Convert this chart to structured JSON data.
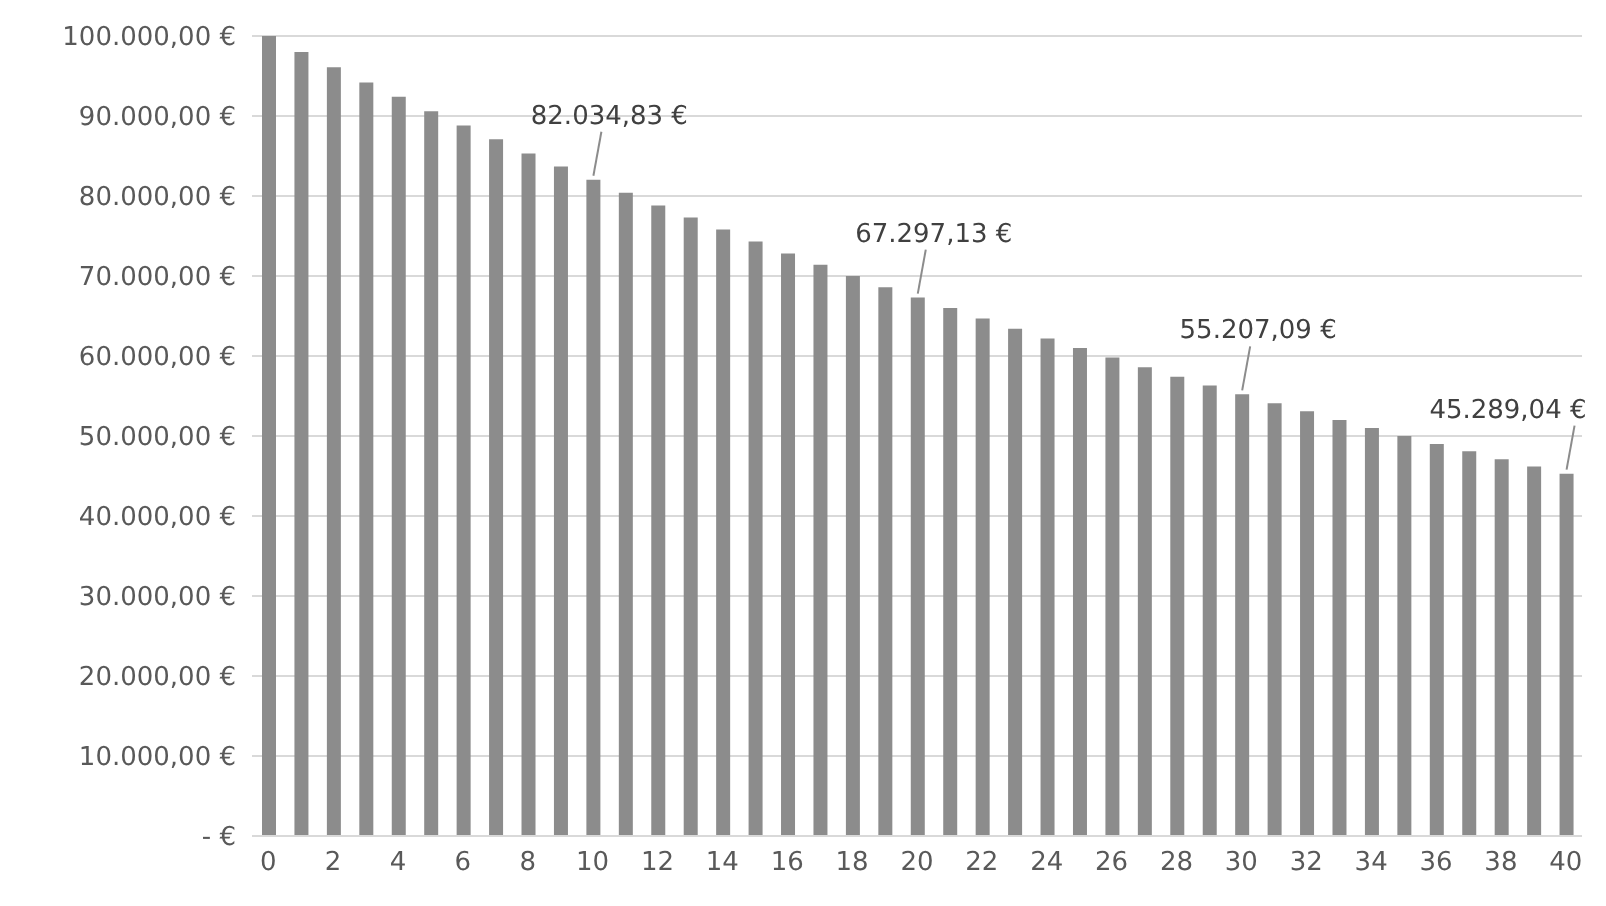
{
  "chart_data": {
    "type": "bar",
    "x": [
      0,
      1,
      2,
      3,
      4,
      5,
      6,
      7,
      8,
      9,
      10,
      11,
      12,
      13,
      14,
      15,
      16,
      17,
      18,
      19,
      20,
      21,
      22,
      23,
      24,
      25,
      26,
      27,
      28,
      29,
      30,
      31,
      32,
      33,
      34,
      35,
      36,
      37,
      38,
      39,
      40
    ],
    "xlim": [
      -0.5,
      40.5
    ],
    "xticks": [
      0,
      2,
      4,
      6,
      8,
      10,
      12,
      14,
      16,
      18,
      20,
      22,
      24,
      26,
      28,
      30,
      32,
      34,
      36,
      38,
      40
    ],
    "values": [
      100000,
      98000,
      96100,
      94200,
      92400,
      90600,
      88800,
      87100,
      85300,
      83700,
      82034.83,
      80400,
      78800,
      77300,
      75800,
      74300,
      72800,
      71400,
      70000,
      68600,
      67297.13,
      66000,
      64700,
      63400,
      62200,
      61000,
      59800,
      58600,
      57400,
      56300,
      55207.09,
      54100,
      53100,
      52000,
      51000,
      50000,
      49000,
      48100,
      47100,
      46200,
      45289.04
    ],
    "value_labels": [
      null,
      null,
      null,
      null,
      null,
      null,
      null,
      null,
      null,
      null,
      "82.034,83 €",
      null,
      null,
      null,
      null,
      null,
      null,
      null,
      null,
      null,
      "67.297,13 €",
      null,
      null,
      null,
      null,
      null,
      null,
      null,
      null,
      null,
      "55.207,09 €",
      null,
      null,
      null,
      null,
      null,
      null,
      null,
      null,
      null,
      "45.289,04 €"
    ],
    "color": "#8c8c8c",
    "ylim": [
      0,
      100000
    ],
    "yticks": [
      {
        "value": 0,
        "label": "-   €"
      },
      {
        "value": 10000,
        "label": "10.000,00 €"
      },
      {
        "value": 20000,
        "label": "20.000,00 €"
      },
      {
        "value": 30000,
        "label": "30.000,00 €"
      },
      {
        "value": 40000,
        "label": "40.000,00 €"
      },
      {
        "value": 50000,
        "label": "50.000,00 €"
      },
      {
        "value": 60000,
        "label": "60.000,00 €"
      },
      {
        "value": 70000,
        "label": "70.000,00 €"
      },
      {
        "value": 80000,
        "label": "80.000,00 €"
      },
      {
        "value": 90000,
        "label": "90.000,00 €"
      },
      {
        "value": 100000,
        "label": "100.000,00 €"
      }
    ],
    "grid": "y"
  }
}
